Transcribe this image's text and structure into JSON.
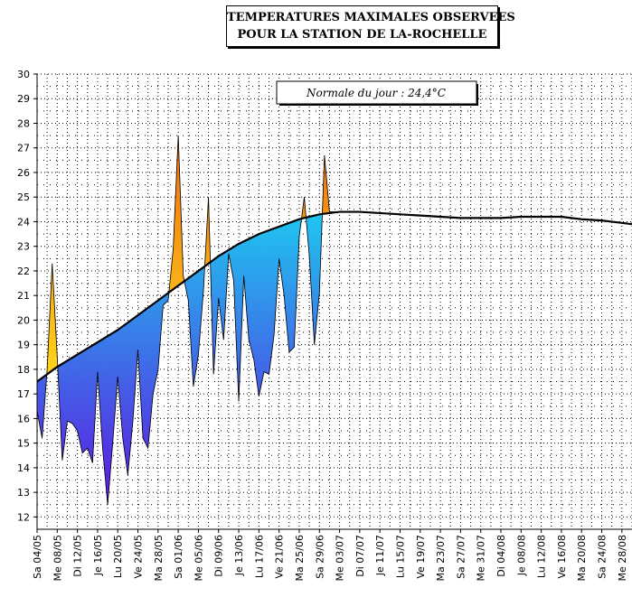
{
  "title": {
    "line1": "TEMPERATURES MAXIMALES OBSERVEES",
    "line2": "POUR LA STATION DE LA-ROCHELLE"
  },
  "annotation": "Normale du jour : 24,4°C",
  "colors": {
    "normal_line": "#000000",
    "below_normal_light": "#1ec8f0",
    "below_normal_deep": "#6010e0",
    "above_normal_light": "#ffd21a",
    "above_normal_deep": "#f07010",
    "grid": "#000000"
  },
  "chart_data": {
    "type": "area",
    "title": "TEMPERATURES MAXIMALES OBSERVEES POUR LA STATION DE LA-ROCHELLE",
    "ylim": [
      11.5,
      30
    ],
    "y_ticks": [
      12,
      13,
      14,
      15,
      16,
      17,
      18,
      19,
      20,
      21,
      22,
      23,
      24,
      25,
      26,
      27,
      28,
      29,
      30
    ],
    "x_tick_labels": [
      "Sa 04/05",
      "Me 08/05",
      "Di 12/05",
      "Je 16/05",
      "Lu 20/05",
      "Ve 24/05",
      "Ma 28/05",
      "Sa 01/06",
      "Me 05/06",
      "Di 09/06",
      "Je 13/06",
      "Lu 17/06",
      "Ve 21/06",
      "Ma 25/06",
      "Sa 29/06",
      "Me 03/07",
      "Di 07/07",
      "Je 11/07",
      "Lu 15/07",
      "Ve 19/07",
      "Ma 23/07",
      "Sa 27/07",
      "Me 31/07",
      "Di 04/08",
      "Je 08/08",
      "Lu 12/08",
      "Ve 16/08",
      "Ma 20/08",
      "Sa 24/08",
      "Me 28/08"
    ],
    "x_start_day": 0,
    "x_end_day": 118,
    "series": [
      {
        "name": "Normale",
        "x": [
          0,
          4,
          8,
          12,
          16,
          20,
          24,
          28,
          32,
          36,
          40,
          44,
          48,
          52,
          56,
          60,
          64,
          68,
          72,
          76,
          80,
          84,
          88,
          92,
          96,
          100,
          104,
          108,
          112,
          116,
          118
        ],
        "values": [
          17.5,
          18.1,
          18.6,
          19.1,
          19.6,
          20.2,
          20.8,
          21.4,
          22.0,
          22.6,
          23.1,
          23.5,
          23.8,
          24.1,
          24.3,
          24.4,
          24.4,
          24.35,
          24.3,
          24.25,
          24.2,
          24.15,
          24.15,
          24.15,
          24.2,
          24.2,
          24.2,
          24.1,
          24.05,
          23.95,
          23.9
        ]
      },
      {
        "name": "Observees",
        "x": [
          0,
          1,
          2,
          3,
          4,
          5,
          6,
          7,
          8,
          9,
          10,
          11,
          12,
          13,
          14,
          15,
          16,
          17,
          18,
          19,
          20,
          21,
          22,
          23,
          24,
          25,
          26,
          27,
          28,
          29,
          30,
          31,
          32,
          33,
          34,
          35,
          36,
          37,
          38,
          39,
          40,
          41,
          42,
          43,
          44,
          45,
          46,
          47,
          48,
          49,
          50,
          51,
          52,
          53,
          54,
          55,
          56,
          57,
          58,
          59,
          60,
          61
        ],
        "values": [
          16.3,
          15.2,
          18.0,
          22.3,
          18.5,
          14.3,
          15.9,
          15.8,
          15.5,
          14.6,
          14.8,
          14.2,
          17.9,
          14.8,
          12.5,
          15.0,
          17.7,
          15.2,
          13.7,
          15.9,
          18.8,
          15.2,
          14.8,
          17.0,
          18.0,
          20.6,
          20.8,
          22.9,
          27.5,
          21.8,
          20.8,
          17.3,
          18.6,
          21.2,
          25.0,
          17.8,
          20.9,
          19.2,
          22.7,
          21.6,
          16.7,
          21.8,
          19.2,
          18.4,
          16.9,
          17.9,
          17.8,
          19.4,
          22.5,
          21.0,
          18.7,
          18.9,
          23.4,
          25.0,
          22.6,
          19.0,
          21.1,
          26.7,
          24.4,
          24.4,
          24.4,
          24.4
        ]
      }
    ]
  }
}
